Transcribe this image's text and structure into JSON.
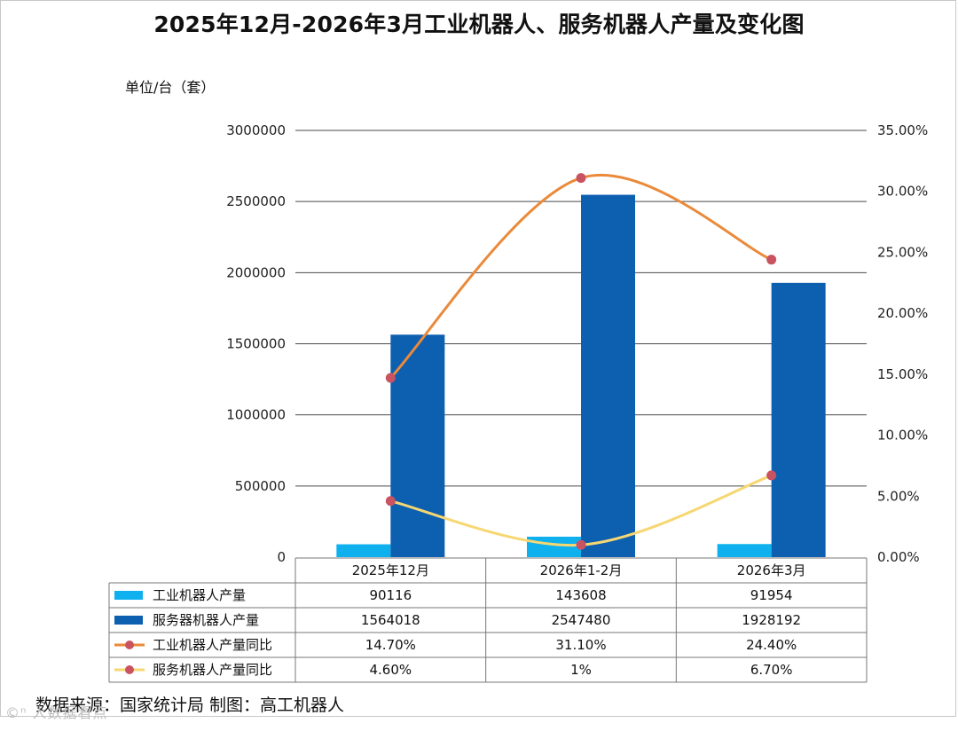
{
  "title": "2025年12月-2026年3月工业机器人、服务机器人产量及变化图",
  "unit_label": "单位/台（套）",
  "footer": "数据来源：国家统计局 制图：高工机器人",
  "watermark": "©ⁿ 人数据看点",
  "colors": {
    "industrial_bar": "#0eb0ee",
    "service_bar": "#0d5fb0",
    "industrial_line": "#ea8a3a",
    "service_line": "#f6d772",
    "marker": "#c95360",
    "grid": "#4a4a4a"
  },
  "chart_data": {
    "type": "bar",
    "title": "2025年12月-2026年3月工业机器人、服务机器人产量及变化图",
    "categories": [
      "2025年12月",
      "2026年1-2月",
      "2026年3月"
    ],
    "y_left": {
      "ylim": [
        0,
        3000000
      ],
      "ticks": [
        "0",
        "500000",
        "1000000",
        "1500000",
        "2000000",
        "2500000",
        "3000000"
      ]
    },
    "y_right": {
      "ylim": [
        0,
        35
      ],
      "ticks": [
        "0.00%",
        "5.00%",
        "10.00%",
        "15.00%",
        "20.00%",
        "25.00%",
        "30.00%",
        "35.00%"
      ]
    },
    "series": [
      {
        "name": "工业机器人产量",
        "kind": "bar",
        "axis": "left",
        "values": [
          90116,
          143608,
          91954
        ],
        "labels": [
          "90116",
          "143608",
          "91954"
        ]
      },
      {
        "name": "服务器机器人产量",
        "kind": "bar",
        "axis": "left",
        "values": [
          1564018,
          2547480,
          1928192
        ],
        "labels": [
          "1564018",
          "2547480",
          "1928192"
        ]
      },
      {
        "name": "工业机器人产量同比",
        "kind": "line",
        "axis": "right",
        "values": [
          14.7,
          31.1,
          24.4
        ],
        "labels": [
          "14.70%",
          "31.10%",
          "24.40%"
        ]
      },
      {
        "name": "服务机器人产量同比",
        "kind": "line",
        "axis": "right",
        "values": [
          4.6,
          1,
          6.7
        ],
        "labels": [
          "4.60%",
          "1%",
          "6.70%"
        ]
      }
    ]
  }
}
